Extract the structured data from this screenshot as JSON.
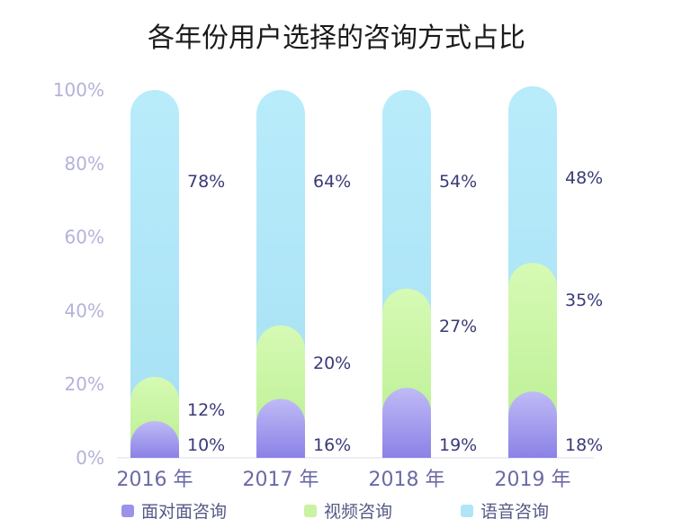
{
  "chart_data": {
    "type": "bar",
    "stacked": true,
    "title": "各年份用户选择的咨询方式占比",
    "categories": [
      "2016 年",
      "2017 年",
      "2018 年",
      "2019 年"
    ],
    "yticks": [
      "0%",
      "20%",
      "40%",
      "60%",
      "80%",
      "100%"
    ],
    "ylim": [
      0,
      100
    ],
    "grid": false,
    "legend_position": "bottom",
    "series": [
      {
        "name": "面对面咨询",
        "values": [
          10,
          16,
          19,
          18
        ],
        "labels": [
          "10%",
          "16%",
          "19%",
          "18%"
        ],
        "color": "#9b92ea"
      },
      {
        "name": "视频咨询",
        "values": [
          12,
          20,
          27,
          35
        ],
        "labels": [
          "12%",
          "20%",
          "27%",
          "35%"
        ],
        "color": "#c9f2a2"
      },
      {
        "name": "语音咨询",
        "values": [
          78,
          64,
          54,
          48
        ],
        "labels": [
          "78%",
          "64%",
          "54%",
          "48%"
        ],
        "color": "#aee6f7"
      }
    ]
  }
}
